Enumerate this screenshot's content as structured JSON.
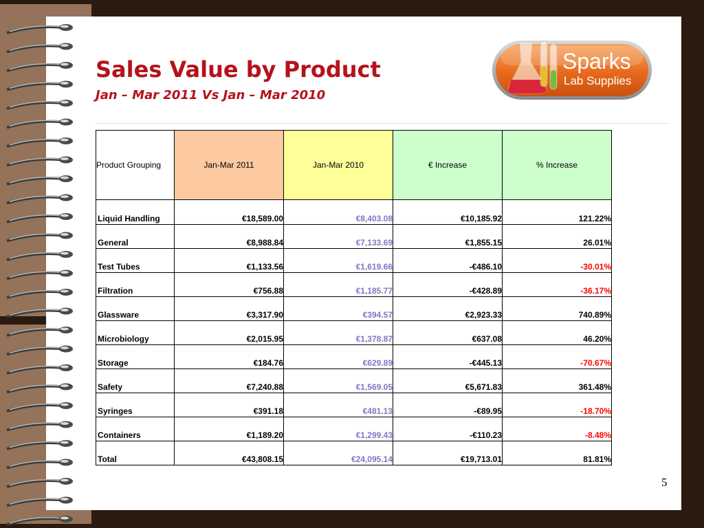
{
  "slide": {
    "title": "Sales Value by Product",
    "subtitle": "Jan – Mar 2011 Vs Jan – Mar 2010",
    "page_number": "5"
  },
  "logo": {
    "name": "Sparks",
    "tagline": "Lab Supplies",
    "icon": "lab-flask-test-tubes-icon",
    "accent_color": "#e8691c"
  },
  "table": {
    "headers": [
      "Product Grouping",
      "Jan-Mar 2011",
      "Jan-Mar 2010",
      "€ Increase",
      "% Increase"
    ],
    "header_colors": [
      "#ffffff",
      "#fcc9a0",
      "#ffff99",
      "#ccffcc",
      "#ccffcc"
    ],
    "rows": [
      {
        "product": "Liquid Handling",
        "jan_mar_2011": "€18,589.00",
        "jan_mar_2010": "€8,403.08",
        "eur_increase": "€10,185.92",
        "pct_increase": "121.22%"
      },
      {
        "product": "General",
        "jan_mar_2011": "€8,988.84",
        "jan_mar_2010": "€7,133.69",
        "eur_increase": "€1,855.15",
        "pct_increase": "26.01%"
      },
      {
        "product": "Test Tubes",
        "jan_mar_2011": "€1,133.56",
        "jan_mar_2010": "€1,619.66",
        "eur_increase": "-€486.10",
        "pct_increase": "-30.01%"
      },
      {
        "product": "Filtration",
        "jan_mar_2011": "€756.88",
        "jan_mar_2010": "€1,185.77",
        "eur_increase": "-€428.89",
        "pct_increase": "-36.17%"
      },
      {
        "product": "Glassware",
        "jan_mar_2011": "€3,317.90",
        "jan_mar_2010": "€394.57",
        "eur_increase": "€2,923.33",
        "pct_increase": "740.89%"
      },
      {
        "product": "Microbiology",
        "jan_mar_2011": "€2,015.95",
        "jan_mar_2010": "€1,378.87",
        "eur_increase": "€637.08",
        "pct_increase": "46.20%"
      },
      {
        "product": "Storage",
        "jan_mar_2011": "€184.76",
        "jan_mar_2010": "€629.89",
        "eur_increase": "-€445.13",
        "pct_increase": "-70.67%"
      },
      {
        "product": "Safety",
        "jan_mar_2011": "€7,240.88",
        "jan_mar_2010": "€1,569.05",
        "eur_increase": "€5,671.83",
        "pct_increase": "361.48%"
      },
      {
        "product": "Syringes",
        "jan_mar_2011": "€391.18",
        "jan_mar_2010": "€481.13",
        "eur_increase": "-€89.95",
        "pct_increase": "-18.70%"
      },
      {
        "product": "Containers",
        "jan_mar_2011": "€1,189.20",
        "jan_mar_2010": "€1,299.43",
        "eur_increase": "-€110.23",
        "pct_increase": "-8.48%"
      },
      {
        "product": "Total",
        "jan_mar_2011": "€43,808.15",
        "jan_mar_2010": "€24,095.14",
        "eur_increase": "€19,713.01",
        "pct_increase": "81.81%"
      }
    ],
    "colors": {
      "jan_mar_2010_text": "#7c79c0",
      "negative_pct_text": "#ff0000",
      "title_red": "#b5121b"
    }
  }
}
